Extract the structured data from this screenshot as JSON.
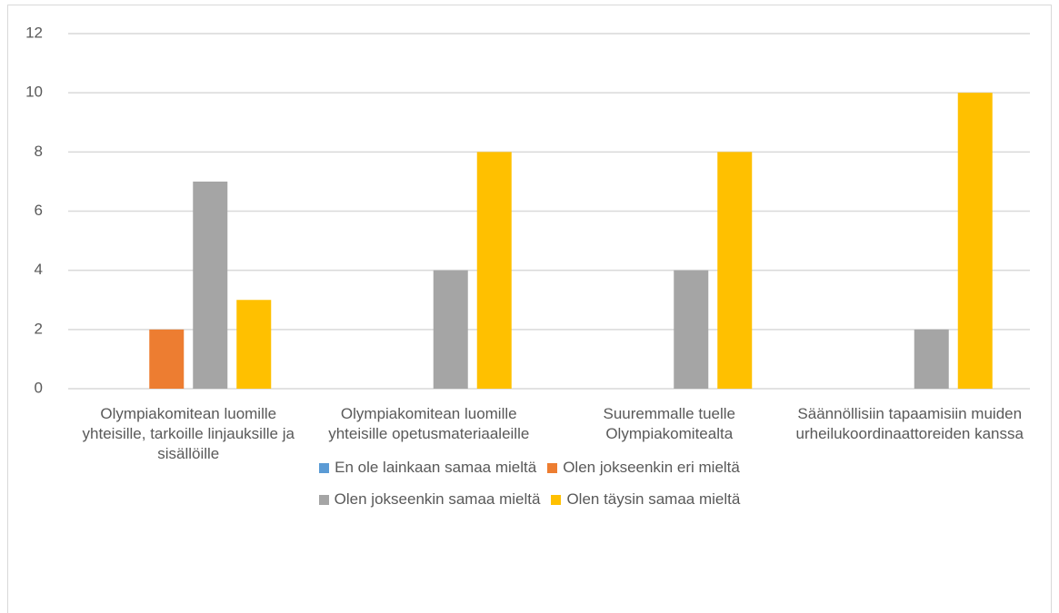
{
  "chart_data": {
    "type": "bar",
    "categories": [
      "Olympiakomitean luomille yhteisille, tarkoille linjauksille ja sisällöille",
      "Olympiakomitean luomille yhteisille opetusmateriaaleille",
      "Suuremmalle tuelle Olympiakomitealta",
      "Säännöllisiin tapaamisiin muiden urheilukoordinaattoreiden kanssa"
    ],
    "series": [
      {
        "name": "En ole lainkaan samaa mieltä",
        "color": "#5b9bd5",
        "values": [
          0,
          0,
          0,
          0
        ]
      },
      {
        "name": "Olen jokseenkin eri mieltä",
        "color": "#ed7d31",
        "values": [
          2,
          0,
          0,
          0
        ]
      },
      {
        "name": "Olen jokseenkin samaa mieltä",
        "color": "#a5a5a5",
        "values": [
          7,
          4,
          4,
          2
        ]
      },
      {
        "name": "Olen täysin samaa mieltä",
        "color": "#ffc000",
        "values": [
          3,
          8,
          8,
          10
        ]
      }
    ],
    "ylim": [
      0,
      12
    ],
    "yticks": [
      0,
      2,
      4,
      6,
      8,
      10,
      12
    ],
    "grid": true,
    "legend": "bottom"
  }
}
